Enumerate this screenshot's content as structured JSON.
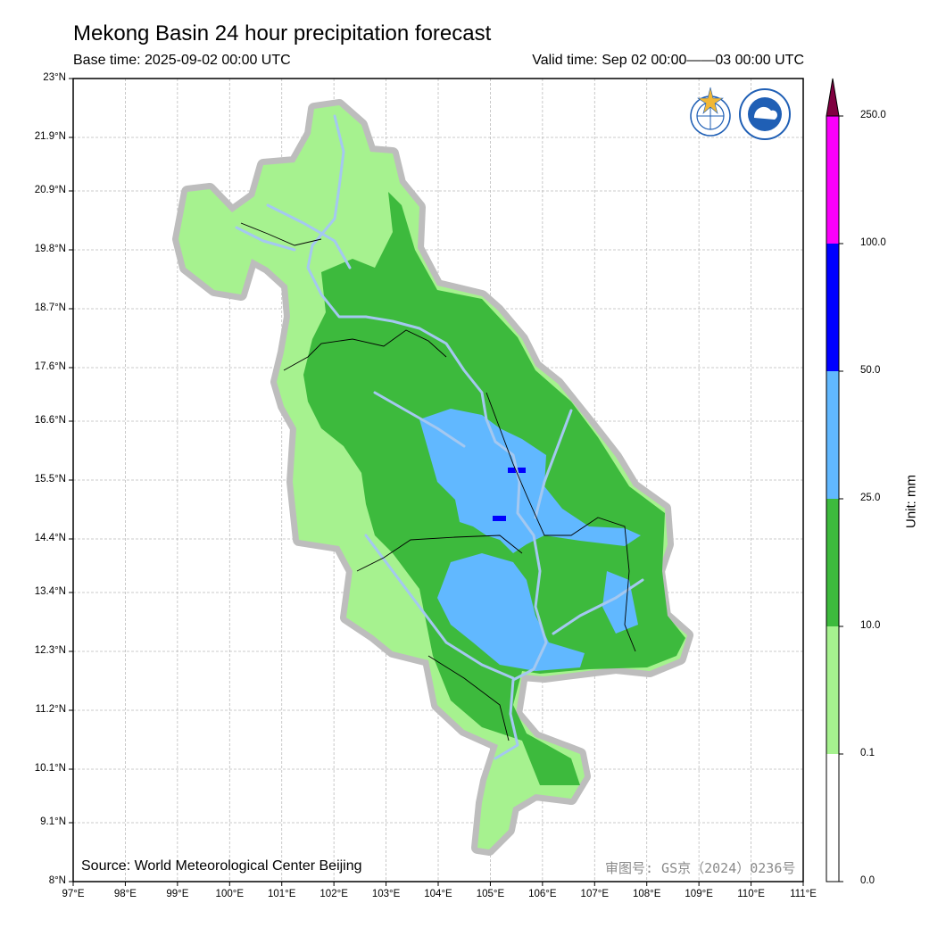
{
  "title": "Mekong Basin 24 hour precipitation forecast",
  "base_time": "Base time: 2025-09-02 00:00 UTC",
  "valid_time": "Valid time: Sep 02 00:00——03 00:00 UTC",
  "source": "Source: World Meteorological Center Beijing",
  "approval_number": "审图号: GS京（2024）0236号",
  "x_ticks": [
    "97°E",
    "98°E",
    "99°E",
    "100°E",
    "101°E",
    "102°E",
    "103°E",
    "104°E",
    "105°E",
    "106°E",
    "107°E",
    "108°E",
    "109°E",
    "110°E",
    "111°E"
  ],
  "y_ticks": [
    "23°N",
    "21.9°N",
    "20.9°N",
    "19.8°N",
    "18.7°N",
    "17.6°N",
    "16.6°N",
    "15.5°N",
    "14.4°N",
    "13.4°N",
    "12.3°N",
    "11.2°N",
    "10.1°N",
    "9.1°N",
    "8°N"
  ],
  "colorbar": {
    "levels": [
      "0.0",
      "0.1",
      "10.0",
      "25.0",
      "50.0",
      "100.0",
      "250.0"
    ],
    "colors": [
      "#ffffff",
      "#a6f28f",
      "#3dba3d",
      "#61b8ff",
      "#0000ff",
      "#fa00fa",
      "#800040"
    ],
    "unit_label": "Unit: mm"
  },
  "logos": [
    "wmo-logo",
    "cma-logo"
  ]
}
